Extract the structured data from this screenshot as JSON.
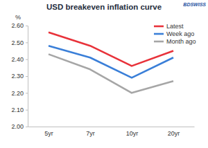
{
  "chart_data": {
    "type": "line",
    "title": "USD breakeven inflation curve",
    "ylabel": "%",
    "annotations": [
      "BDSWISS"
    ],
    "categories": [
      "5yr",
      "7yr",
      "10yr",
      "20yr"
    ],
    "series": [
      {
        "name": "Latest",
        "color": "#e8323a",
        "values": [
          2.56,
          2.48,
          2.36,
          2.45
        ]
      },
      {
        "name": "Week ago",
        "color": "#3a7fd8",
        "values": [
          2.48,
          2.41,
          2.29,
          2.41
        ]
      },
      {
        "name": "Month ago",
        "color": "#a6a6a6",
        "values": [
          2.43,
          2.34,
          2.2,
          2.27
        ]
      }
    ],
    "ylim": [
      2.0,
      2.6
    ],
    "yticks": [
      {
        "value": 2.0,
        "label": "2.00"
      },
      {
        "value": 2.1,
        "label": "2.10"
      },
      {
        "value": 2.2,
        "label": "2.20"
      },
      {
        "value": 2.3,
        "label": "2.30"
      },
      {
        "value": 2.4,
        "label": "2.40"
      },
      {
        "value": 2.5,
        "label": "2.50"
      },
      {
        "value": 2.6,
        "label": "2.60"
      }
    ],
    "grid": false,
    "legend": "upper right"
  }
}
